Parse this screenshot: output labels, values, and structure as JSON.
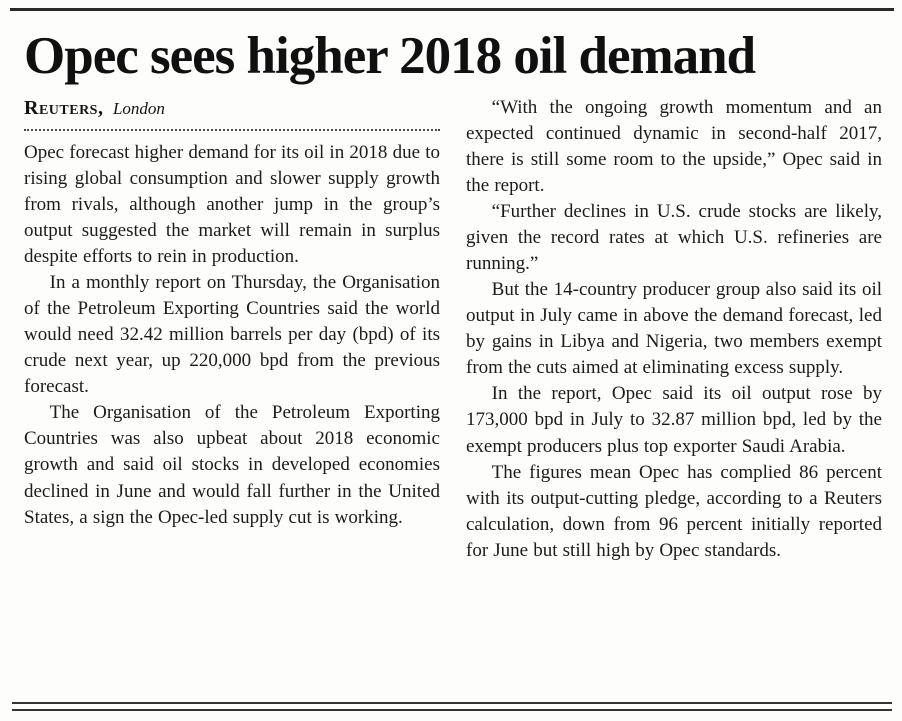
{
  "style": {
    "paper_color": "#fdfdfb",
    "ink_color": "#1b1b1b"
  },
  "article": {
    "headline": "Opec sees higher 2018 oil demand",
    "byline": {
      "agency": "Reuters,",
      "location": "London"
    },
    "columns": [
      {
        "paragraphs": [
          "Opec forecast higher demand for its oil in 2018 due to rising global consumption and slower supply growth from rivals, although another jump in the group’s output suggested the market will remain in surplus despite efforts to rein in production.",
          "In a monthly report on Thursday, the Organisation of the Petroleum Exporting Countries said the world would need 32.42 million barrels per day (bpd) of its crude next year, up 220,000 bpd from the previous forecast.",
          "The Organisation of the Petroleum Exporting Countries was also upbeat about 2018 economic growth and said oil stocks in developed economies declined in June and would fall further in the United States, a sign the Opec-led supply cut is working."
        ]
      },
      {
        "paragraphs": [
          "“With the ongoing growth momentum and an expected continued dynamic in second-half 2017, there is still some room to the upside,” Opec said in the report.",
          "“Further declines in U.S. crude stocks are likely, given the record rates at which U.S. refineries are running.”",
          "But the 14-country producer group also said its oil output in July came in above the demand forecast, led by gains in Libya and Nigeria, two members exempt from the cuts aimed at eliminating excess supply.",
          "In the report, Opec said its oil output rose by 173,000 bpd in July to 32.87 million bpd, led by the exempt producers plus top exporter Saudi Arabia.",
          "The figures mean Opec has complied 86 percent with its output-cutting pledge, according to a Reuters calculation, down from 96 percent initially reported for June but still high by Opec standards."
        ]
      }
    ]
  }
}
